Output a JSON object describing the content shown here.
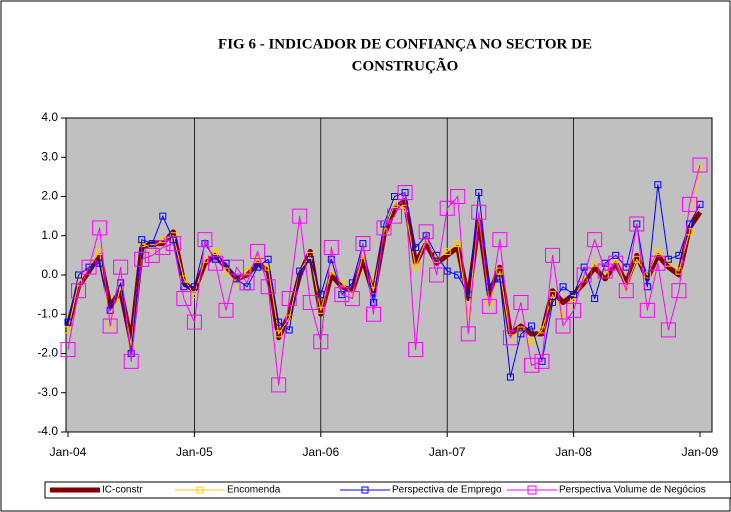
{
  "chart_data": {
    "type": "line",
    "title": [
      "FIG 6 - INDICADOR DE CONFIANÇA NO SECTOR DE",
      "CONSTRUÇÃO"
    ],
    "categories": [
      "Jan-04",
      null,
      null,
      null,
      null,
      null,
      null,
      null,
      null,
      null,
      null,
      null,
      "Jan-05",
      null,
      null,
      null,
      null,
      null,
      null,
      null,
      null,
      null,
      null,
      null,
      "Jan-06",
      null,
      null,
      null,
      null,
      null,
      null,
      null,
      null,
      null,
      null,
      null,
      "Jan-07",
      null,
      null,
      null,
      null,
      null,
      null,
      null,
      null,
      null,
      null,
      null,
      "Jan-08",
      null,
      null,
      null,
      null,
      null,
      null,
      null,
      null,
      null,
      null,
      null,
      "Jan-09"
    ],
    "ylim": [
      -4,
      4
    ],
    "yticks": [
      {
        "value": -4,
        "label": "-4.0"
      },
      {
        "value": -3,
        "label": "-3.0"
      },
      {
        "value": -2,
        "label": "-2.0"
      },
      {
        "value": -1,
        "label": "-1.0"
      },
      {
        "value": 0,
        "label": "0.0"
      },
      {
        "value": 1,
        "label": "1.0"
      },
      {
        "value": 2,
        "label": "2.0"
      },
      {
        "value": 3,
        "label": "3.0"
      },
      {
        "value": 4,
        "label": "4.0"
      }
    ],
    "background": "#c0c0c0",
    "series": [
      {
        "name": "IC-constr",
        "color": "#800000",
        "width": 5,
        "marker": 0,
        "values": [
          -1.3,
          -0.3,
          0.1,
          0.5,
          -0.8,
          -0.4,
          -1.7,
          0.7,
          0.8,
          0.8,
          1.1,
          -0.2,
          -0.4,
          0.3,
          0.5,
          0.2,
          -0.1,
          0.0,
          0.3,
          0.1,
          -1.6,
          -1.0,
          0.0,
          0.6,
          -1.0,
          0.0,
          -0.3,
          -0.4,
          0.4,
          -0.5,
          1.0,
          1.7,
          1.9,
          0.3,
          0.8,
          0.3,
          0.5,
          0.7,
          -0.6,
          1.4,
          -0.5,
          0.2,
          -1.5,
          -1.3,
          -1.5,
          -1.5,
          -0.4,
          -0.7,
          -0.5,
          -0.2,
          0.2,
          -0.1,
          0.3,
          -0.2,
          0.5,
          -0.1,
          0.5,
          0.2,
          0.0,
          1.2,
          1.6
        ]
      },
      {
        "name": "Encomenda",
        "color": "#ffcc00",
        "width": 1,
        "marker": 6,
        "values": [
          -1.4,
          -0.2,
          0.2,
          0.6,
          -1.3,
          -0.3,
          -1.8,
          0.8,
          0.7,
          0.9,
          1.0,
          -0.1,
          -0.5,
          0.4,
          0.6,
          0.1,
          -0.2,
          0.1,
          0.4,
          0.2,
          -1.5,
          -1.1,
          0.1,
          0.5,
          -0.9,
          0.1,
          -0.2,
          -0.5,
          0.5,
          -0.4,
          1.1,
          1.8,
          1.7,
          0.2,
          0.9,
          0.4,
          0.6,
          0.8,
          -1.0,
          1.5,
          -0.7,
          0.1,
          -1.6,
          -1.4,
          -1.7,
          -1.4,
          -0.5,
          -1.0,
          -0.6,
          -0.1,
          0.3,
          0.0,
          0.4,
          -0.3,
          0.4,
          0.0,
          0.6,
          0.3,
          0.1,
          1.1,
          2.7
        ]
      },
      {
        "name": "Perspectiva de Emprego",
        "color": "#0000ff",
        "width": 1,
        "marker": 6,
        "values": [
          -1.2,
          0.0,
          0.2,
          0.3,
          -0.9,
          -0.2,
          -2.0,
          0.9,
          0.8,
          1.5,
          0.9,
          -0.3,
          -0.3,
          0.8,
          0.4,
          0.3,
          -0.1,
          -0.3,
          0.2,
          0.4,
          -1.2,
          -1.4,
          0.1,
          0.4,
          -0.5,
          0.4,
          -0.5,
          -0.2,
          0.8,
          -0.7,
          1.3,
          2.0,
          2.1,
          0.7,
          1.0,
          0.5,
          0.1,
          0.0,
          -0.5,
          2.1,
          -0.3,
          -0.1,
          -2.6,
          -1.5,
          -1.3,
          -2.2,
          -0.7,
          -0.3,
          -0.5,
          0.2,
          -0.6,
          0.3,
          0.5,
          0.2,
          1.3,
          -0.3,
          2.3,
          0.4,
          0.5,
          1.3,
          1.8
        ]
      },
      {
        "name": "Perspectiva Volume de Negócios",
        "color": "#ff00ff",
        "width": 1,
        "marker": 14,
        "values": [
          -1.9,
          -0.4,
          0.2,
          1.2,
          -1.3,
          0.2,
          -2.2,
          0.4,
          0.5,
          0.7,
          0.8,
          -0.6,
          -1.2,
          0.9,
          0.3,
          -0.9,
          0.2,
          -0.2,
          0.6,
          -0.3,
          -2.8,
          -0.6,
          1.5,
          -0.7,
          -1.7,
          0.7,
          -0.5,
          -0.6,
          0.8,
          -1.0,
          1.2,
          1.5,
          2.1,
          -1.9,
          1.1,
          0.0,
          1.7,
          2.0,
          -1.5,
          1.6,
          -0.8,
          0.9,
          -1.6,
          -0.7,
          -2.3,
          -2.2,
          0.5,
          -1.3,
          -0.9,
          0.0,
          0.9,
          0.1,
          0.3,
          -0.4,
          1.3,
          -0.9,
          0.3,
          -1.4,
          -0.4,
          1.8,
          2.8
        ]
      }
    ]
  }
}
